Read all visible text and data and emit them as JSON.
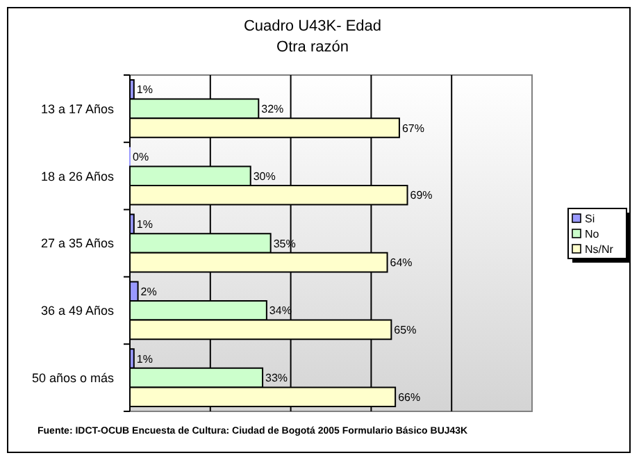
{
  "chart_data": {
    "type": "bar",
    "orientation": "horizontal",
    "title": "Cuadro U43K- Edad",
    "subtitle": "Otra razón",
    "categories": [
      "13 a 17 Años",
      "18 a 26 Años",
      "27 a 35 Años",
      "36 a 49 Años",
      "50 años o más"
    ],
    "series": [
      {
        "name": "Si",
        "color": "#9999ff",
        "values": [
          1,
          0,
          1,
          2,
          1
        ],
        "value_labels": [
          "1%",
          "0%",
          "1%",
          "2%",
          "1%"
        ]
      },
      {
        "name": "No",
        "color": "#ccffcc",
        "values": [
          32,
          30,
          35,
          34,
          33
        ],
        "value_labels": [
          "32%",
          "30%",
          "35%",
          "34%",
          "33%"
        ]
      },
      {
        "name": "Ns/Nr",
        "color": "#ffffcc",
        "values": [
          67,
          69,
          64,
          65,
          66
        ],
        "value_labels": [
          "67%",
          "69%",
          "64%",
          "65%",
          "66%"
        ]
      }
    ],
    "xlim": [
      0,
      100
    ],
    "xticks": [
      {
        "value": 20,
        "label": null
      },
      {
        "value": 40,
        "label": null
      },
      {
        "value": 60,
        "label": null
      },
      {
        "value": 80,
        "label": null
      }
    ],
    "grid": "x",
    "legend": "right",
    "tick_labels": "y",
    "annotations": [
      "Fuente: IDCT-OCUB Encuesta de Cultura: Ciudad de Bogotá 2005 Formulario Básico BUJ43K"
    ]
  }
}
